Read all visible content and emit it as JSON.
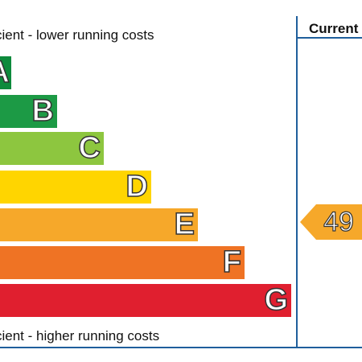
{
  "header": {
    "top_caption": "cient - lower running costs",
    "current_label": "Current"
  },
  "footer": {
    "bottom_caption": "cient - higher running costs"
  },
  "bands": [
    {
      "letter": "A",
      "color": "#0d8a3c"
    },
    {
      "letter": "B",
      "color": "#1c9a45"
    },
    {
      "letter": "C",
      "color": "#8dc63f"
    },
    {
      "letter": "D",
      "color": "#ffd500"
    },
    {
      "letter": "E",
      "color": "#f6a82a"
    },
    {
      "letter": "F",
      "color": "#ef7324"
    },
    {
      "letter": "G",
      "color": "#e01f2f"
    }
  ],
  "current": {
    "value": "49",
    "band": "E",
    "color": "#f6a82a"
  },
  "colors": {
    "frame": "#1f5f9c"
  }
}
